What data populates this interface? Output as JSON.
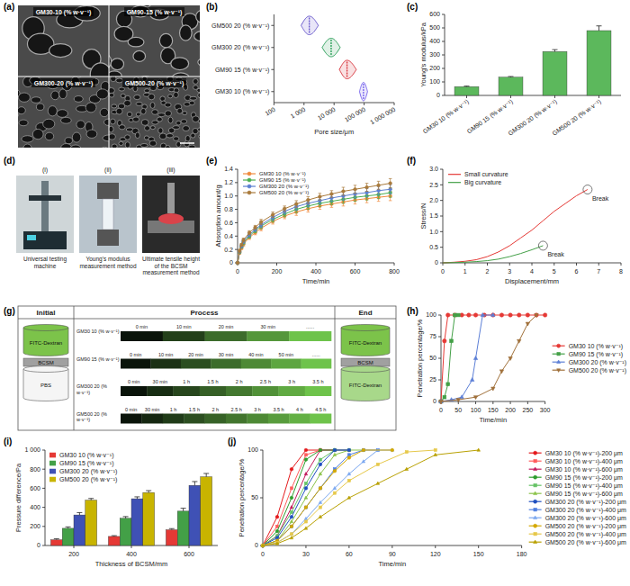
{
  "sem_images": {
    "panel": "(a)",
    "labels": [
      "GM30-10 (% w·v⁻¹)",
      "GM90-15 (% w·v⁻¹)",
      "GM300-20 (% w·v⁻¹)",
      "GM500-20 (% w·v⁻¹)"
    ]
  },
  "testing_setup": {
    "panel": "(d)",
    "items": [
      {
        "numeral": "(i)",
        "caption": "Universal testing machine"
      },
      {
        "numeral": "(ii)",
        "caption": "Young's modulus measurement method"
      },
      {
        "numeral": "(iii)",
        "caption": "Ultimate tensile height of the BCSM measurement method"
      }
    ]
  },
  "penetration_diagram": {
    "panel": "(g)",
    "headers": [
      "Initial",
      "Process",
      "End"
    ],
    "initial_labels": [
      "FITC-Dextran",
      "PBS",
      "BCSM"
    ],
    "end_labels": [
      "FITC-Dextran",
      "FITC-Dextran",
      "BCSM"
    ],
    "rows": [
      {
        "label": "GM30 10 (% w·v⁻¹)",
        "times": [
          "0 min",
          "10 min",
          "20 min",
          "30 min",
          "......"
        ]
      },
      {
        "label": "GM90 15 (% w·v⁻¹)",
        "times": [
          "0 min",
          "10 min",
          "20 min",
          "30 min",
          "40 min",
          "50 min",
          "......"
        ]
      },
      {
        "label": "GM300 20 (% w·v⁻¹)",
        "times": [
          "0 min",
          "30 min",
          "1 h",
          "1.5 h",
          "2 h",
          "2.5 h",
          "3 h",
          "3.5 h"
        ]
      },
      {
        "label": "GM500 20 (% w·v⁻¹)",
        "times": [
          "0 min",
          "30 min",
          "1 h",
          "1.5 h",
          "2 h",
          "2.5 h",
          "3 h",
          "3.5 h",
          "4 h",
          "4.5 h"
        ]
      }
    ]
  },
  "chart_data": [
    {
      "panel": "(b)",
      "type": "violin",
      "orientation": "horizontal",
      "log": "x",
      "x_label": "Pore size/μm",
      "categories": [
        "GM500 20 (% w·v⁻¹)",
        "GM300 20 (% w·v⁻¹)",
        "GM90 15 (% w·v⁻¹)",
        "GM30 10 (% w·v⁻¹)"
      ],
      "mins": [
        800,
        4000,
        15000,
        70000
      ],
      "medians": [
        1500,
        8000,
        27000,
        95000
      ],
      "maxs": [
        3000,
        16000,
        55000,
        130000
      ],
      "colors": [
        "#6a5acd",
        "#2ca05a",
        "#d9363e",
        "#7b68ee"
      ],
      "xlim": [
        100,
        1000000
      ],
      "xticks": [
        100,
        {
          "value": 1000,
          "label": "1 000"
        },
        {
          "value": 10000,
          "label": "10 000"
        },
        {
          "value": 100000,
          "label": "100 000"
        },
        {
          "value": 1000000,
          "label": "1 000 000"
        }
      ]
    },
    {
      "panel": "(c)",
      "type": "bar",
      "y_label": "Young's modulus/kPa",
      "categories": [
        "GM30 10 (% w·v⁻¹)",
        "GM90 15 (% w·v⁻¹)",
        "GM300 20 (% w·v⁻¹)",
        "GM500 20 (% w·v⁻¹)"
      ],
      "values": [
        65,
        135,
        325,
        480
      ],
      "errors": [
        4,
        5,
        14,
        35
      ],
      "color": "#5cb85c",
      "ylim": [
        0,
        600
      ],
      "yticks": [
        0,
        100,
        200,
        300,
        400,
        500,
        600
      ]
    },
    {
      "panel": "(e)",
      "type": "line",
      "x_label": "Time/min",
      "y_label": "Absorption amount/g",
      "legend": "top-left",
      "x": [
        0,
        10,
        20,
        30,
        60,
        90,
        120,
        180,
        240,
        300,
        360,
        420,
        480,
        540,
        600,
        660,
        720,
        780
      ],
      "series": [
        {
          "name": "GM30 10 (% w·v⁻¹)",
          "color": "#f08a3c",
          "marker": "circle",
          "values": [
            0,
            0.15,
            0.22,
            0.28,
            0.38,
            0.45,
            0.52,
            0.62,
            0.7,
            0.76,
            0.81,
            0.85,
            0.88,
            0.91,
            0.94,
            0.96,
            0.98,
            1.0
          ],
          "errors": [
            0,
            0.02,
            0.02,
            0.03,
            0.03,
            0.03,
            0.04,
            0.04,
            0.04,
            0.05,
            0.05,
            0.05,
            0.05,
            0.06,
            0.06,
            0.06,
            0.06,
            0.07
          ]
        },
        {
          "name": "GM90 15 (% w·v⁻¹)",
          "color": "#4caf50",
          "marker": "circle",
          "values": [
            0,
            0.16,
            0.24,
            0.3,
            0.4,
            0.48,
            0.55,
            0.65,
            0.73,
            0.8,
            0.85,
            0.89,
            0.92,
            0.95,
            0.98,
            1.0,
            1.02,
            1.05
          ],
          "errors": [
            0,
            0.02,
            0.02,
            0.03,
            0.03,
            0.03,
            0.04,
            0.04,
            0.04,
            0.05,
            0.05,
            0.05,
            0.05,
            0.06,
            0.06,
            0.06,
            0.06,
            0.07
          ]
        },
        {
          "name": "GM300 20 (% w·v⁻¹)",
          "color": "#5b7fd1",
          "marker": "circle",
          "values": [
            0,
            0.17,
            0.25,
            0.32,
            0.42,
            0.5,
            0.57,
            0.68,
            0.77,
            0.84,
            0.89,
            0.93,
            0.97,
            1.0,
            1.03,
            1.05,
            1.08,
            1.1
          ],
          "errors": [
            0,
            0.02,
            0.02,
            0.03,
            0.03,
            0.03,
            0.04,
            0.04,
            0.04,
            0.05,
            0.05,
            0.05,
            0.05,
            0.06,
            0.06,
            0.06,
            0.06,
            0.07
          ]
        },
        {
          "name": "GM500 20 (% w·v⁻¹)",
          "color": "#a97a3b",
          "marker": "circle",
          "values": [
            0,
            0.18,
            0.27,
            0.34,
            0.45,
            0.53,
            0.61,
            0.72,
            0.81,
            0.88,
            0.94,
            0.99,
            1.03,
            1.07,
            1.1,
            1.13,
            1.16,
            1.19
          ],
          "errors": [
            0,
            0.02,
            0.02,
            0.03,
            0.03,
            0.03,
            0.04,
            0.04,
            0.04,
            0.05,
            0.05,
            0.05,
            0.05,
            0.06,
            0.06,
            0.06,
            0.06,
            0.07
          ]
        }
      ],
      "xlim": [
        0,
        800
      ],
      "xticks": [
        0,
        200,
        400,
        600,
        800
      ],
      "ylim": [
        0,
        1.4
      ],
      "yticks": [
        0,
        0.2,
        0.4,
        0.6,
        0.8,
        {
          "value": 1,
          "label": "1.0"
        },
        1.2,
        1.4
      ]
    },
    {
      "panel": "(f)",
      "type": "line",
      "x_label": "Displacement/mm",
      "y_label": "Stress/N",
      "legend": "top-left",
      "series": [
        {
          "name": "Small curvature",
          "color": "#e53935",
          "x": [
            0,
            0.5,
            1,
            1.5,
            2,
            2.5,
            3,
            3.5,
            4,
            4.5,
            5,
            5.5,
            6,
            6.5
          ],
          "values": [
            0,
            0.02,
            0.05,
            0.1,
            0.2,
            0.35,
            0.55,
            0.8,
            1.05,
            1.35,
            1.65,
            1.9,
            2.15,
            2.35
          ]
        },
        {
          "name": "Big curvature",
          "color": "#43a047",
          "x": [
            0,
            0.5,
            1,
            1.5,
            2,
            2.5,
            3,
            3.5,
            4,
            4.5
          ],
          "values": [
            0,
            0.01,
            0.02,
            0.04,
            0.07,
            0.12,
            0.2,
            0.3,
            0.42,
            0.55
          ]
        }
      ],
      "annotations": [
        {
          "text": "Break",
          "x": 6.5,
          "y": 2.35
        },
        {
          "text": "Break",
          "x": 4.5,
          "y": 0.55
        }
      ],
      "xlim": [
        0,
        8
      ],
      "xticks": [
        0,
        1,
        2,
        3,
        4,
        5,
        6,
        7,
        8
      ],
      "ylim": [
        0,
        3
      ],
      "yticks": [
        0,
        0.5,
        {
          "value": 1,
          "label": "1.0"
        },
        1.5,
        {
          "value": 2,
          "label": "2.0"
        },
        2.5,
        {
          "value": 3,
          "label": "3.0"
        }
      ]
    },
    {
      "panel": "(h)",
      "type": "line",
      "x_label": "Time/min",
      "y_label": "Penetration percentage/%",
      "legend": "right",
      "series": [
        {
          "name": "GM30 10 (% w·v⁻¹)",
          "color": "#e53935",
          "marker": "circle",
          "x": [
            0,
            10,
            20,
            40,
            60,
            80,
            100,
            125,
            150,
            175,
            200,
            225,
            250,
            275,
            300
          ],
          "values": [
            0,
            70,
            100,
            100,
            100,
            100,
            100,
            100,
            100,
            100,
            100,
            100,
            100,
            100,
            100
          ]
        },
        {
          "name": "GM90 15 (% w·v⁻¹)",
          "color": "#43a047",
          "marker": "square",
          "x": [
            0,
            10,
            20,
            30,
            40,
            50
          ],
          "values": [
            0,
            5,
            20,
            70,
            100,
            100
          ]
        },
        {
          "name": "GM300 20 (% w·v⁻¹)",
          "color": "#5c7fd6",
          "marker": "triangle",
          "x": [
            0,
            30,
            60,
            90,
            100,
            120,
            150
          ],
          "values": [
            0,
            2,
            5,
            25,
            50,
            100,
            100
          ]
        },
        {
          "name": "GM500 20 (% w·v⁻¹)",
          "color": "#a0703a",
          "marker": "triangle-down",
          "x": [
            0,
            50,
            100,
            150,
            175,
            200,
            225,
            250,
            275
          ],
          "values": [
            0,
            2,
            5,
            15,
            35,
            50,
            70,
            90,
            100
          ]
        }
      ],
      "xlim": [
        0,
        300
      ],
      "xticks": [
        0,
        50,
        100,
        150,
        200,
        250,
        300
      ],
      "ylim": [
        0,
        100
      ],
      "yticks": [
        0,
        25,
        50,
        75,
        100
      ]
    },
    {
      "panel": "(i)",
      "type": "bar",
      "x_label": "Thickness of BCSM/mm",
      "y_label": "Pressure difference/Pa",
      "legend": "top-left",
      "categories": [
        "200",
        "400",
        "600"
      ],
      "series": [
        {
          "name": "GM30 10 (% w·v⁻¹)",
          "color": "#e53935",
          "values": [
            60,
            95,
            165
          ],
          "errors": [
            10,
            8,
            12
          ]
        },
        {
          "name": "GM90 15 (% w·v⁻¹)",
          "color": "#43a047",
          "values": [
            180,
            285,
            360
          ],
          "errors": [
            15,
            18,
            30
          ]
        },
        {
          "name": "GM300 20 (% w·v⁻¹)",
          "color": "#3f51b5",
          "values": [
            320,
            490,
            630
          ],
          "errors": [
            25,
            20,
            40
          ]
        },
        {
          "name": "GM500 20 (% w·v⁻¹)",
          "color": "#c8b400",
          "values": [
            475,
            555,
            720
          ],
          "errors": [
            18,
            20,
            35
          ]
        }
      ],
      "ylim": [
        0,
        1000
      ],
      "yticks": [
        0,
        200,
        400,
        600,
        800,
        {
          "value": 1000,
          "label": "1 000"
        }
      ]
    },
    {
      "panel": "(j)",
      "type": "line",
      "x_label": "Time/min",
      "y_label": "Penetration percentage/%",
      "legend": "right",
      "series": [
        {
          "name": "GM30 10 (% w·v⁻¹)-200 μm",
          "color": "#e41a1c",
          "marker": "circle",
          "x": [
            0,
            10,
            20,
            30,
            40
          ],
          "values": [
            0,
            30,
            80,
            100,
            100
          ]
        },
        {
          "name": "GM30 10 (% w·v⁻¹)-400 μm",
          "color": "#ff5c5c",
          "marker": "square",
          "x": [
            0,
            10,
            20,
            30,
            40,
            50
          ],
          "values": [
            0,
            20,
            60,
            95,
            100,
            100
          ]
        },
        {
          "name": "GM30 10 (% w·v⁻¹)-600 μm",
          "color": "#c2185b",
          "marker": "triangle",
          "x": [
            0,
            10,
            20,
            30,
            40,
            50,
            60
          ],
          "values": [
            0,
            10,
            40,
            75,
            100,
            100,
            100
          ]
        },
        {
          "name": "GM90 15 (% w·v⁻¹)-200 μm",
          "color": "#2e9e2e",
          "marker": "circle",
          "x": [
            0,
            10,
            20,
            30,
            40,
            50
          ],
          "values": [
            0,
            15,
            50,
            90,
            100,
            100
          ]
        },
        {
          "name": "GM90 15 (% w·v⁻¹)-400 μm",
          "color": "#66c266",
          "marker": "square",
          "x": [
            0,
            10,
            20,
            30,
            40,
            50,
            60
          ],
          "values": [
            0,
            10,
            35,
            65,
            90,
            100,
            100
          ]
        },
        {
          "name": "GM90 15 (% w·v⁻¹)-600 μm",
          "color": "#8bc34a",
          "marker": "triangle",
          "x": [
            0,
            10,
            20,
            30,
            40,
            50,
            60,
            70
          ],
          "values": [
            0,
            5,
            25,
            50,
            75,
            95,
            100,
            100
          ]
        },
        {
          "name": "GM300 20 (% w·v⁻¹)-200 μm",
          "color": "#1f4fbf",
          "marker": "circle",
          "x": [
            0,
            10,
            20,
            30,
            40,
            50,
            60
          ],
          "values": [
            0,
            8,
            30,
            60,
            85,
            100,
            100
          ]
        },
        {
          "name": "GM300 20 (% w·v⁻¹)-400 μm",
          "color": "#4f7fe0",
          "marker": "square",
          "x": [
            0,
            10,
            20,
            30,
            40,
            50,
            60,
            70,
            80
          ],
          "values": [
            0,
            5,
            20,
            40,
            60,
            80,
            95,
            100,
            100
          ]
        },
        {
          "name": "GM300 20 (% w·v⁻¹)-600 μm",
          "color": "#7aa7f0",
          "marker": "triangle",
          "x": [
            0,
            10,
            20,
            30,
            40,
            50,
            60,
            70,
            80,
            90
          ],
          "values": [
            0,
            3,
            12,
            28,
            45,
            60,
            75,
            88,
            100,
            100
          ]
        },
        {
          "name": "GM500 20 (% w·v⁻¹)-200 μm",
          "color": "#d4a800",
          "marker": "circle",
          "x": [
            0,
            10,
            20,
            30,
            40,
            50,
            60,
            70,
            90
          ],
          "values": [
            0,
            5,
            20,
            40,
            60,
            78,
            92,
            100,
            100
          ]
        },
        {
          "name": "GM500 20 (% w·v⁻¹)-400 μm",
          "color": "#e6c84a",
          "marker": "square",
          "x": [
            0,
            10,
            20,
            30,
            40,
            50,
            60,
            80,
            100,
            120
          ],
          "values": [
            0,
            3,
            12,
            25,
            40,
            55,
            68,
            85,
            98,
            100
          ]
        },
        {
          "name": "GM500 20 (% w·v⁻¹)-600 μm",
          "color": "#b8a000",
          "marker": "triangle",
          "x": [
            0,
            10,
            20,
            30,
            40,
            60,
            80,
            100,
            120,
            150
          ],
          "values": [
            0,
            2,
            8,
            18,
            30,
            50,
            65,
            80,
            95,
            100
          ]
        }
      ],
      "xlim": [
        0,
        180
      ],
      "xticks": [
        0,
        30,
        60,
        90,
        120,
        150,
        180
      ],
      "ylim": [
        0,
        100
      ],
      "yticks": [
        0,
        50,
        100
      ]
    }
  ]
}
